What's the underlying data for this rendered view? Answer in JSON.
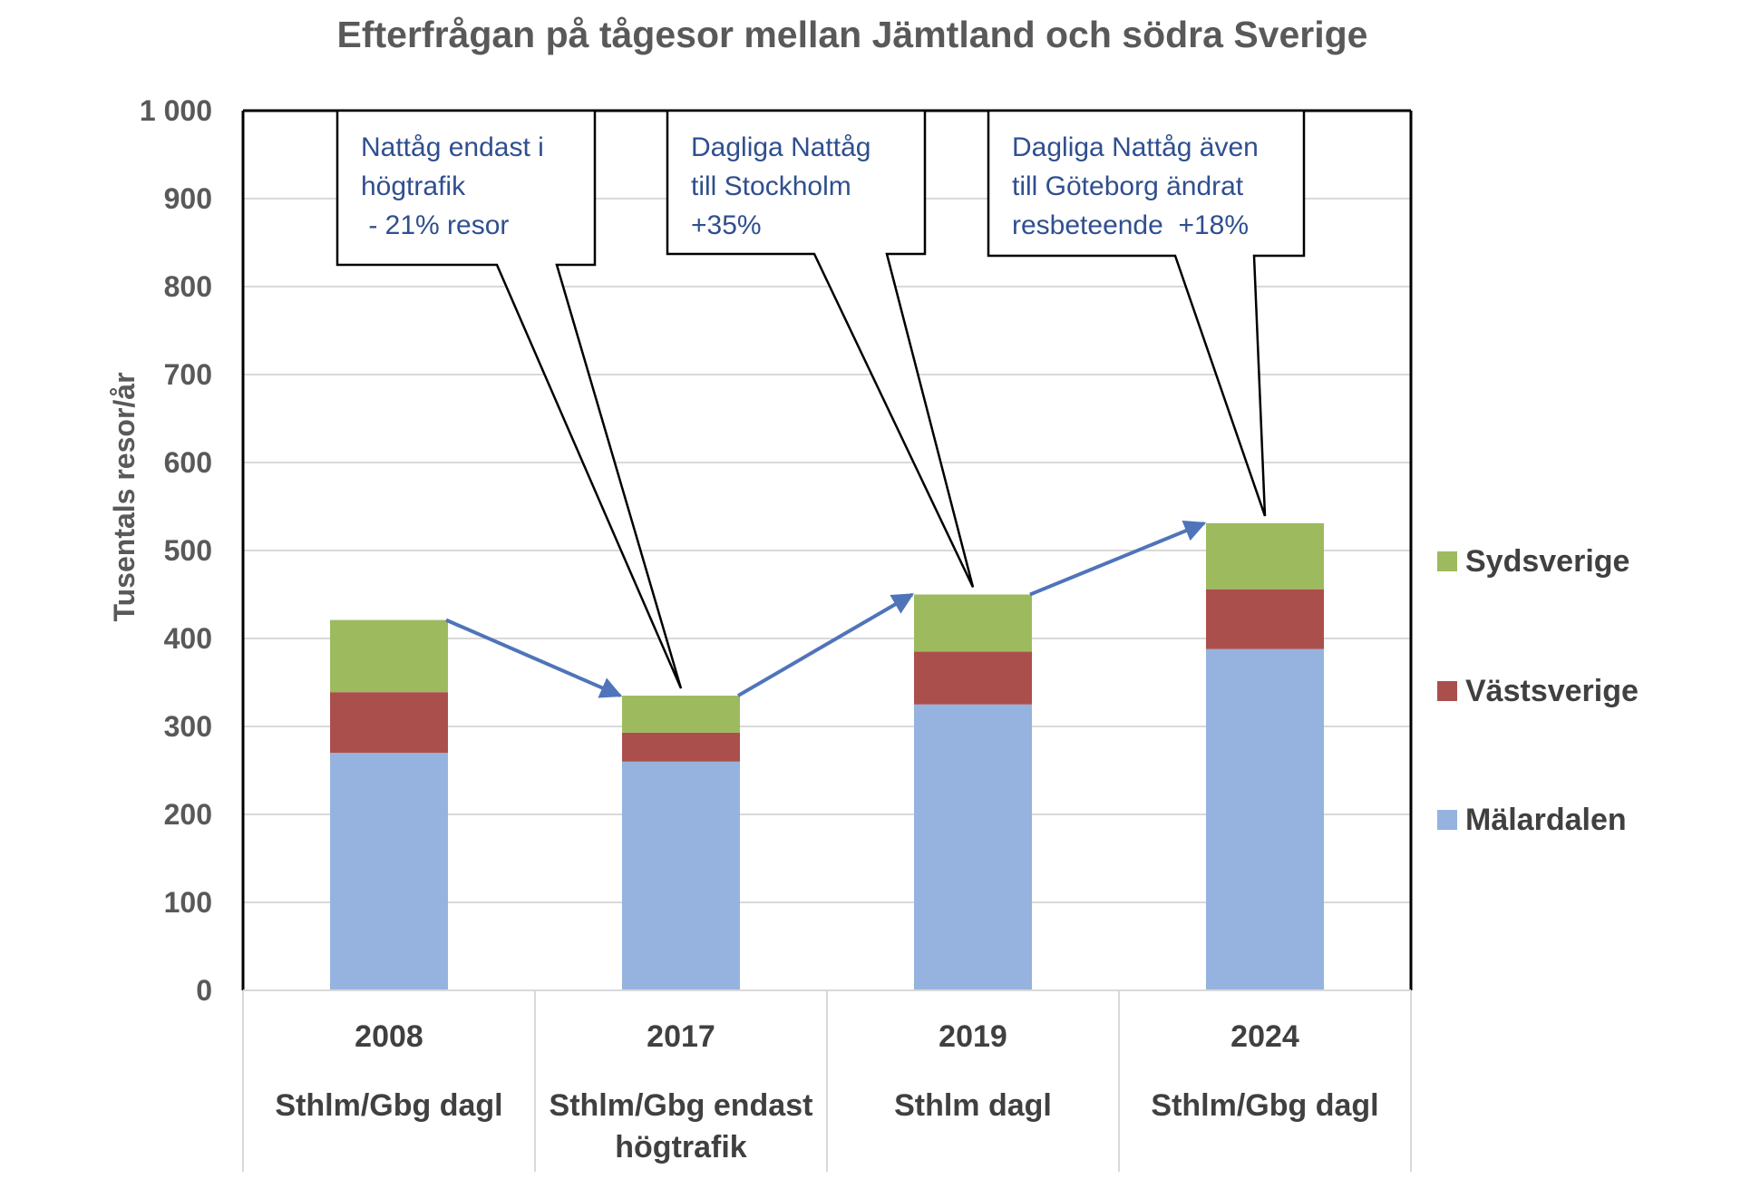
{
  "chart_data": {
    "type": "bar",
    "stacked": true,
    "title": "Efterfrågan på tågesor mellan Jämtland och södra Sverige",
    "ylabel": "Tusentals resor/år",
    "xlabel": "",
    "ylim": [
      0,
      1000
    ],
    "yticks": [
      0,
      100,
      200,
      300,
      400,
      500,
      600,
      700,
      800,
      900,
      1000
    ],
    "ytick_labels": [
      "0",
      "100",
      "200",
      "300",
      "400",
      "500",
      "600",
      "700",
      "800",
      "900",
      "1 000"
    ],
    "grid": true,
    "legend_position": "right",
    "categories": [
      {
        "year": "2008",
        "label_lines": [
          "Sthlm/Gbg dagl"
        ]
      },
      {
        "year": "2017",
        "label_lines": [
          "Sthlm/Gbg endast",
          "högtrafik"
        ]
      },
      {
        "year": "2019",
        "label_lines": [
          "Sthlm dagl"
        ]
      },
      {
        "year": "2024",
        "label_lines": [
          "Sthlm/Gbg dagl"
        ]
      }
    ],
    "series": [
      {
        "name": "Mälardalen",
        "color": "#95b3de",
        "values": [
          270,
          260,
          325,
          388
        ]
      },
      {
        "name": "Västsverige",
        "color": "#ab4f4c",
        "values": [
          69,
          33,
          60,
          68
        ]
      },
      {
        "name": "Sydsverige",
        "color": "#9dbb5e",
        "values": [
          82,
          42,
          65,
          75
        ]
      }
    ],
    "legend_order": [
      "Sydsverige",
      "Västsverige",
      "Mälardalen"
    ],
    "trend_arrow_color": "#4f74b9",
    "annotations": [
      {
        "lines": [
          "Nattåg endast i",
          "högtrafik",
          " - 21% resor"
        ],
        "target_category": 1
      },
      {
        "lines": [
          "Dagliga Nattåg",
          "till Stockholm",
          "+35%"
        ],
        "target_category": 2
      },
      {
        "lines": [
          "Dagliga Nattåg även",
          "till Göteborg ändrat",
          "resbeteende  +18%"
        ],
        "target_category": 3
      }
    ]
  }
}
